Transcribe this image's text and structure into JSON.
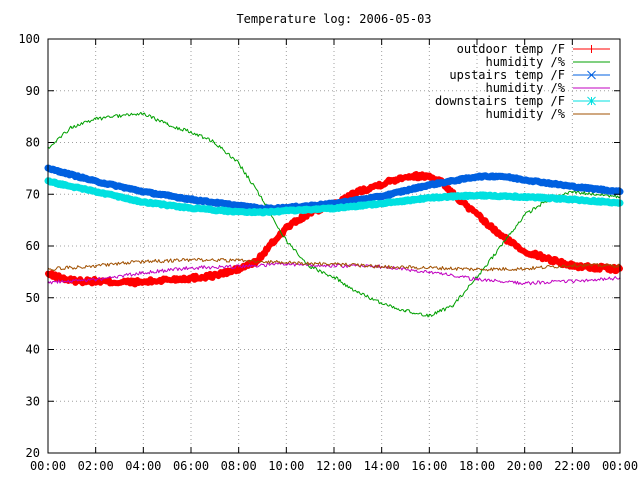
{
  "chart_data": {
    "type": "line",
    "title": "Temperature log: 2006-05-03",
    "xlabel": "",
    "ylabel": "",
    "xlim": [
      "00:00",
      "24:00"
    ],
    "ylim": [
      20,
      100
    ],
    "x_ticks": [
      "00:00",
      "02:00",
      "04:00",
      "06:00",
      "08:00",
      "10:00",
      "12:00",
      "14:00",
      "16:00",
      "18:00",
      "20:00",
      "22:00",
      "00:00"
    ],
    "y_ticks": [
      "20",
      "30",
      "40",
      "50",
      "60",
      "70",
      "80",
      "90",
      "100"
    ],
    "grid": true,
    "legend_position": "top-right",
    "series": [
      {
        "name": "outdoor temp /F",
        "color": "#ff0000",
        "marker": "plus",
        "x": [
          "00:00",
          "01:00",
          "02:00",
          "03:00",
          "04:00",
          "05:00",
          "06:00",
          "07:00",
          "08:00",
          "08:45",
          "09:30",
          "10:00",
          "11:00",
          "12:00",
          "13:00",
          "14:00",
          "15:00",
          "16:00",
          "16:30",
          "17:00",
          "18:00",
          "19:00",
          "20:00",
          "21:00",
          "22:00",
          "23:00",
          "24:00"
        ],
        "values": [
          54.5,
          53.3,
          53.2,
          53.0,
          53.0,
          53.5,
          53.8,
          54.3,
          55.5,
          57.0,
          61.0,
          63.5,
          66.5,
          68.0,
          70.5,
          72.0,
          73.5,
          73.5,
          72.5,
          70.0,
          66.0,
          62.0,
          59.0,
          57.5,
          56.2,
          55.8,
          55.5
        ]
      },
      {
        "name": "humidity /%",
        "color": "#00a000",
        "marker": "none",
        "x": [
          "00:00",
          "01:00",
          "02:00",
          "03:00",
          "04:00",
          "05:00",
          "06:00",
          "07:00",
          "08:00",
          "09:00",
          "10:00",
          "11:00",
          "12:00",
          "13:00",
          "14:00",
          "15:00",
          "16:00",
          "17:00",
          "18:00",
          "19:00",
          "20:00",
          "21:00",
          "22:00",
          "23:00",
          "24:00"
        ],
        "values": [
          79.0,
          83.0,
          84.5,
          85.2,
          85.5,
          83.5,
          82.0,
          80.0,
          76.0,
          69.0,
          61.0,
          56.0,
          54.0,
          51.0,
          49.0,
          47.5,
          46.5,
          48.5,
          54.0,
          60.0,
          66.0,
          69.0,
          70.5,
          70.0,
          69.5
        ]
      },
      {
        "name": "upstairs temp /F",
        "color": "#0060e0",
        "marker": "cross",
        "x": [
          "00:00",
          "02:00",
          "04:00",
          "06:00",
          "08:00",
          "09:00",
          "10:00",
          "12:00",
          "14:00",
          "16:00",
          "18:00",
          "19:00",
          "20:00",
          "22:00",
          "24:00"
        ],
        "values": [
          75.0,
          72.5,
          70.5,
          69.0,
          67.8,
          67.2,
          67.4,
          68.2,
          69.6,
          71.8,
          73.4,
          73.5,
          72.8,
          71.5,
          70.5
        ]
      },
      {
        "name": "humidity /%",
        "color": "#c000c0",
        "marker": "none",
        "x": [
          "00:00",
          "02:00",
          "04:00",
          "06:00",
          "08:00",
          "10:00",
          "12:00",
          "14:00",
          "16:00",
          "18:00",
          "20:00",
          "22:00",
          "24:00"
        ],
        "values": [
          53.0,
          53.5,
          54.8,
          55.8,
          56.0,
          56.5,
          56.2,
          56.0,
          55.0,
          53.5,
          52.8,
          53.2,
          53.8
        ]
      },
      {
        "name": "downstairs temp /F",
        "color": "#00e0e0",
        "marker": "star",
        "x": [
          "00:00",
          "02:00",
          "04:00",
          "06:00",
          "08:00",
          "09:00",
          "10:00",
          "12:00",
          "14:00",
          "16:00",
          "18:00",
          "20:00",
          "22:00",
          "24:00"
        ],
        "values": [
          72.5,
          70.5,
          68.5,
          67.3,
          66.6,
          66.5,
          66.8,
          67.3,
          68.2,
          69.3,
          69.8,
          69.5,
          69.0,
          68.3
        ]
      },
      {
        "name": "humidity /%",
        "color": "#a05000",
        "marker": "none",
        "x": [
          "00:00",
          "02:00",
          "04:00",
          "06:00",
          "08:00",
          "10:00",
          "12:00",
          "14:00",
          "16:00",
          "18:00",
          "20:00",
          "22:00",
          "24:00"
        ],
        "values": [
          55.5,
          56.2,
          57.0,
          57.3,
          57.2,
          56.8,
          56.5,
          56.0,
          55.8,
          55.5,
          55.6,
          56.3,
          56.2
        ]
      }
    ]
  }
}
